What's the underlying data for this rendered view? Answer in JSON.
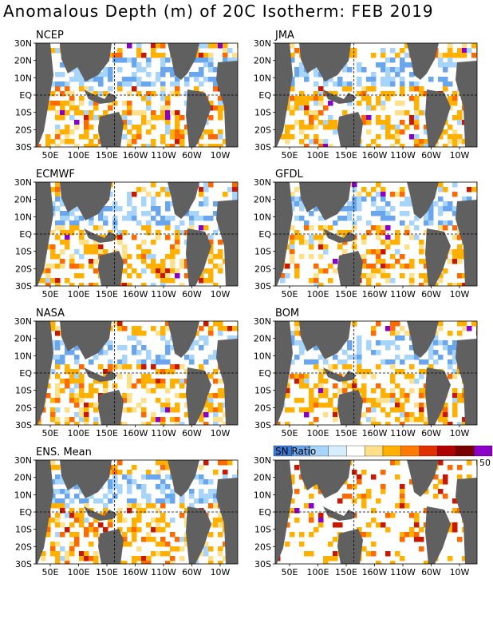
{
  "title": "Anomalous Depth (m) of 20C Isotherm: FEB 2019",
  "lat_ticks": [
    "30N",
    "20N",
    "10N",
    "EQ",
    "10S",
    "20S",
    "30S"
  ],
  "lon_ticks": [
    "50E",
    "100E",
    "150E",
    "160W",
    "110W",
    "60W",
    "10W"
  ],
  "panels": [
    {
      "label": "NCEP"
    },
    {
      "label": "JMA"
    },
    {
      "label": "ECMWF"
    },
    {
      "label": "GFDL"
    },
    {
      "label": "NASA"
    },
    {
      "label": "BOM"
    },
    {
      "label": "ENS. Mean"
    },
    {
      "label": "SN Ratio"
    }
  ],
  "legend": {
    "label": "SN Ratio",
    "max_label": "50",
    "colors": [
      "#3a78d8",
      "#6aa6ee",
      "#a6d4fa",
      "#d6eefc",
      "#ffffff",
      "#ffe08a",
      "#ffb000",
      "#ff7a00",
      "#e03000",
      "#b00000",
      "#7a0000",
      "#8a00c8"
    ]
  },
  "colors": {
    "land": "#606060",
    "ocean_base": "#ffffff",
    "neg_strong": "#3a78d8",
    "neg_mid": "#6aa6ee",
    "neg_weak": "#a6d4fa",
    "pos_weak": "#ffe08a",
    "pos_mid": "#ffb000",
    "pos_strong": "#ff6a00",
    "pos_vstrong": "#c81800",
    "extreme": "#8a00c8"
  }
}
